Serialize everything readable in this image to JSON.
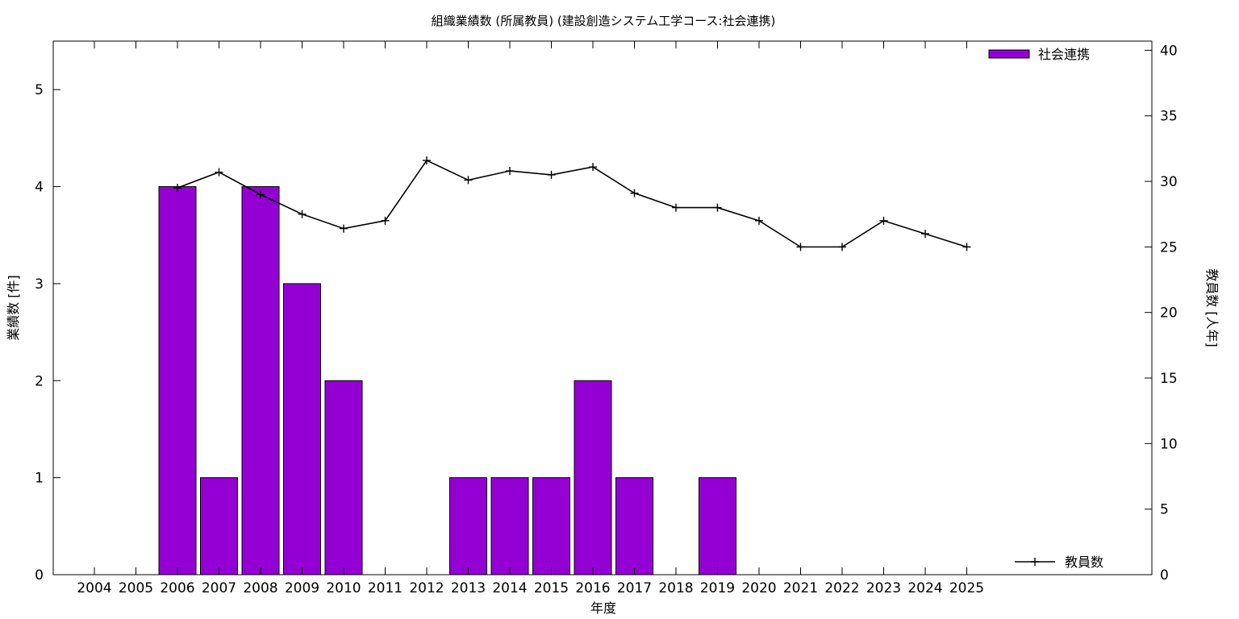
{
  "chart_data": {
    "type": "bar",
    "title": "組織業績数 (所属教員) (建設創造システム工学コース:社会連携)",
    "xlabel": "年度",
    "ylabel": "業績数 [件]",
    "y2label": "教員数 [人年]",
    "categories": [
      "2004",
      "2005",
      "2006",
      "2007",
      "2008",
      "2009",
      "2010",
      "2011",
      "2012",
      "2013",
      "2014",
      "2015",
      "2016",
      "2017",
      "2018",
      "2019",
      "2020",
      "2021",
      "2022",
      "2023",
      "2024",
      "2025"
    ],
    "ylim": [
      0,
      5.5
    ],
    "y2lim": [
      0,
      40.7
    ],
    "yticks": [
      "0",
      "1",
      "2",
      "3",
      "4",
      "5"
    ],
    "y2ticks": [
      "0",
      "5",
      "10",
      "15",
      "20",
      "25",
      "30",
      "35",
      "40"
    ],
    "grid": false,
    "series": [
      {
        "name": "社会連携",
        "type": "bar",
        "axis": "left",
        "color": "#9400d3",
        "values": [
          0,
          0,
          4,
          1,
          4,
          3,
          2,
          0,
          0,
          1,
          1,
          1,
          2,
          1,
          0,
          1,
          0,
          0,
          0,
          0,
          0,
          0
        ]
      },
      {
        "name": "教員数",
        "type": "line",
        "axis": "right",
        "color": "#000000",
        "values": [
          null,
          null,
          29.5,
          30.7,
          29,
          27.5,
          26.4,
          27,
          31.6,
          30.1,
          30.8,
          30.5,
          31.1,
          29.1,
          28,
          28,
          27,
          25,
          25,
          27,
          26,
          25
        ]
      }
    ],
    "legend": [
      {
        "label": "社会連携",
        "placement": "top-right"
      },
      {
        "label": "教員数",
        "placement": "bottom-right"
      }
    ]
  }
}
